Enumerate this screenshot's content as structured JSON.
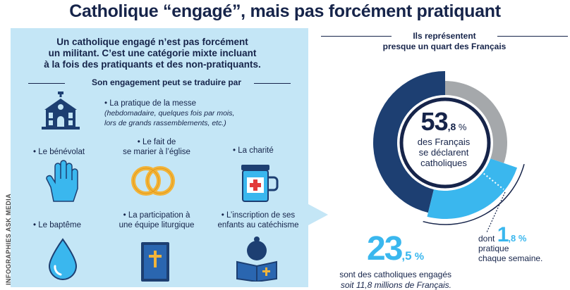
{
  "title": "Catholique “engagé”, mais pas forcément pratiquant",
  "credit": "INFOGRAPHIES ASK MEDIA",
  "panel": {
    "intro_lines": [
      "Un catholique engagé n’est pas forcément",
      "un militant. C’est une catégorie mixte incluant",
      "à la fois des pratiquants et des non-pratiquants."
    ],
    "sub_heading": "Son engagement peut se traduire par",
    "items": {
      "messe": {
        "line1": "• La pratique de la messe",
        "detail1": "(hebdomadaire, quelques fois par mois,",
        "detail2": "lors de grands rassemblements, etc.)"
      },
      "benevolat": "• Le bénévolat",
      "mariage": {
        "line1": "• Le fait de",
        "line2": "se marier à l’église"
      },
      "charite": "• La charité",
      "bapteme": "• Le baptême",
      "liturgie": {
        "line1": "• La participation à",
        "line2": "une équipe liturgique"
      },
      "catechisme": {
        "line1": "• L’inscription de ses",
        "line2": "enfants au catéchisme"
      }
    }
  },
  "right": {
    "heading_line1": "Ils représentent",
    "heading_line2": "presque un quart des Français",
    "center": {
      "big": "53",
      "dec": ",8",
      "pct": " %",
      "line1": "des Français",
      "line2": "se déclarent",
      "line3": "catholiques"
    },
    "engaged": {
      "big": "23",
      "dec": ",5",
      "pct": " %",
      "line1": "sont des catholiques engagés",
      "line2": "soit 11,8 millions de Français."
    },
    "practicing": {
      "prefix": "dont ",
      "big": "1",
      "dec": ",8",
      "pct": " %",
      "line1": "pratique",
      "line2": "chaque semaine."
    }
  },
  "colors": {
    "navy": "#16244a",
    "dark_blue": "#1d3f72",
    "light_blue": "#3ab7ee",
    "grey": "#a5a8ab",
    "panel_bg": "#c4e6f6"
  },
  "chart_data": {
    "type": "pie",
    "description_units": "percent of French population",
    "slices": [
      {
        "label": "catholiques",
        "value": 53.8
      },
      {
        "label": "catholiques engagés",
        "value": 23.5
      },
      {
        "label": "pratique chaque semaine",
        "value": 1.8
      }
    ]
  }
}
